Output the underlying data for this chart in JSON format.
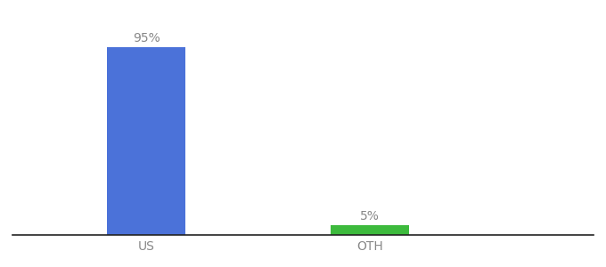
{
  "categories": [
    "US",
    "OTH"
  ],
  "values": [
    95,
    5
  ],
  "bar_colors": [
    "#4b72d9",
    "#3dba3d"
  ],
  "label_texts": [
    "95%",
    "5%"
  ],
  "background_color": "#ffffff",
  "text_color": "#888888",
  "label_fontsize": 10,
  "tick_fontsize": 10,
  "ylim": [
    0,
    108
  ],
  "bar_width": 0.35,
  "x_positions": [
    1,
    2
  ],
  "xlim": [
    0.4,
    3.0
  ]
}
